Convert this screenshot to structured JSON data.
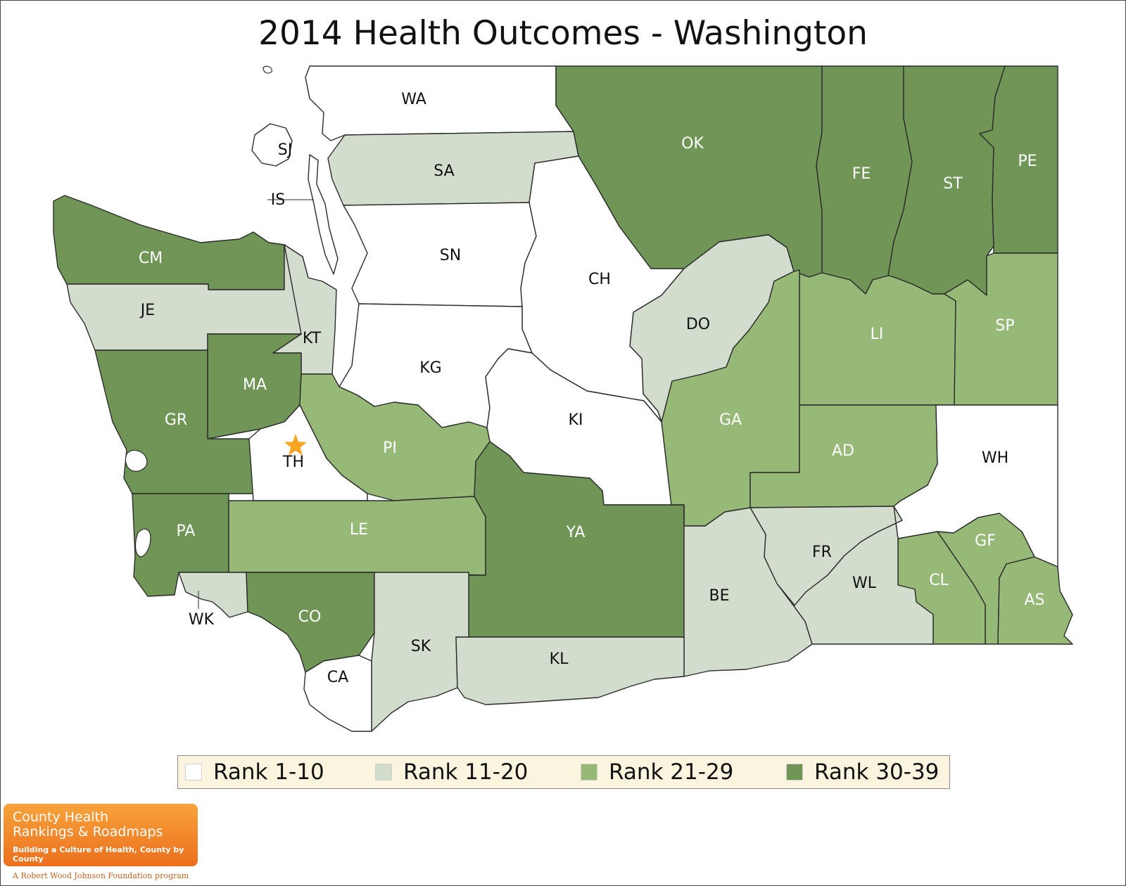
{
  "title": "2014 Health Outcomes - Washington",
  "colors": {
    "rank_1_10": "#ffffff",
    "rank_11_20": "#d2ddcd",
    "rank_21_29": "#97b978",
    "rank_30_39": "#6f9656",
    "label_light": "#ffffff",
    "label_dark": "#111111",
    "star": "#f6a623"
  },
  "legend": [
    {
      "label": "Rank 1-10",
      "tier": "rank_1_10"
    },
    {
      "label": "Rank 11-20",
      "tier": "rank_11_20"
    },
    {
      "label": "Rank 21-29",
      "tier": "rank_21_29"
    },
    {
      "label": "Rank 30-39",
      "tier": "rank_30_39"
    }
  ],
  "counties": [
    {
      "abbr": "WA",
      "tier": "rank_1_10"
    },
    {
      "abbr": "SJ",
      "tier": "rank_1_10"
    },
    {
      "abbr": "IS",
      "tier": "rank_1_10"
    },
    {
      "abbr": "SA",
      "tier": "rank_11_20"
    },
    {
      "abbr": "OK",
      "tier": "rank_30_39"
    },
    {
      "abbr": "FE",
      "tier": "rank_30_39"
    },
    {
      "abbr": "ST",
      "tier": "rank_30_39"
    },
    {
      "abbr": "PE",
      "tier": "rank_30_39"
    },
    {
      "abbr": "CM",
      "tier": "rank_30_39"
    },
    {
      "abbr": "SN",
      "tier": "rank_1_10"
    },
    {
      "abbr": "CH",
      "tier": "rank_1_10"
    },
    {
      "abbr": "JE",
      "tier": "rank_11_20"
    },
    {
      "abbr": "DO",
      "tier": "rank_11_20"
    },
    {
      "abbr": "LI",
      "tier": "rank_21_29"
    },
    {
      "abbr": "SP",
      "tier": "rank_21_29"
    },
    {
      "abbr": "KT",
      "tier": "rank_11_20"
    },
    {
      "abbr": "KG",
      "tier": "rank_1_10"
    },
    {
      "abbr": "MA",
      "tier": "rank_30_39"
    },
    {
      "abbr": "GR",
      "tier": "rank_30_39"
    },
    {
      "abbr": "GA",
      "tier": "rank_21_29"
    },
    {
      "abbr": "KI",
      "tier": "rank_1_10"
    },
    {
      "abbr": "PI",
      "tier": "rank_21_29"
    },
    {
      "abbr": "AD",
      "tier": "rank_21_29"
    },
    {
      "abbr": "WH",
      "tier": "rank_1_10"
    },
    {
      "abbr": "TH",
      "tier": "rank_1_10"
    },
    {
      "abbr": "PA",
      "tier": "rank_30_39"
    },
    {
      "abbr": "LE",
      "tier": "rank_21_29"
    },
    {
      "abbr": "YA",
      "tier": "rank_30_39"
    },
    {
      "abbr": "FR",
      "tier": "rank_11_20"
    },
    {
      "abbr": "GF",
      "tier": "rank_21_29"
    },
    {
      "abbr": "CL",
      "tier": "rank_21_29"
    },
    {
      "abbr": "WL",
      "tier": "rank_11_20"
    },
    {
      "abbr": "AS",
      "tier": "rank_21_29"
    },
    {
      "abbr": "BE",
      "tier": "rank_11_20"
    },
    {
      "abbr": "WK",
      "tier": "rank_11_20"
    },
    {
      "abbr": "CO",
      "tier": "rank_30_39"
    },
    {
      "abbr": "SK",
      "tier": "rank_11_20"
    },
    {
      "abbr": "KL",
      "tier": "rank_11_20"
    },
    {
      "abbr": "CA",
      "tier": "rank_1_10"
    }
  ],
  "marker": {
    "type": "star",
    "county": "TH"
  },
  "logo": {
    "line1": "County Health",
    "line2": "Rankings & Roadmaps",
    "tagline": "Building a Culture of Health, County by County",
    "footer": "A Robert Wood Johnson Foundation program"
  }
}
